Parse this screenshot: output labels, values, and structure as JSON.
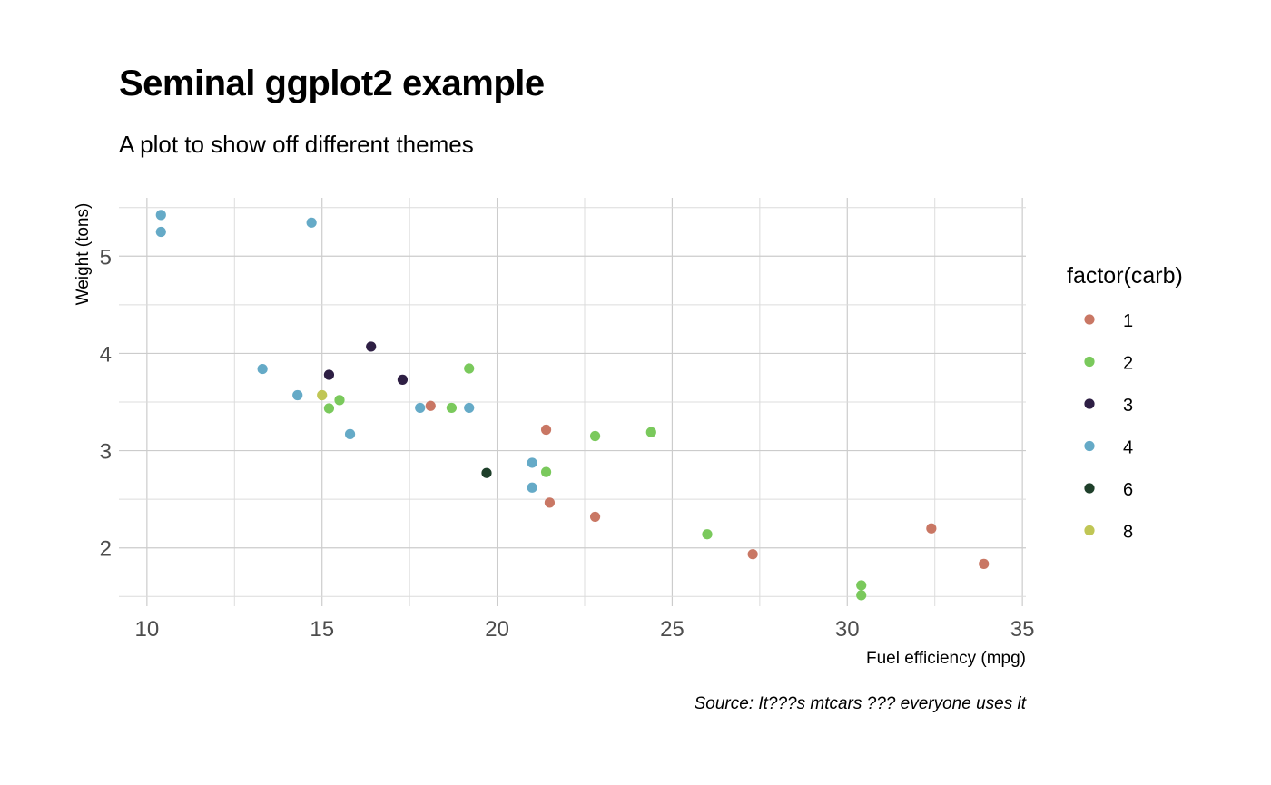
{
  "chart_data": {
    "type": "scatter",
    "title": "Seminal ggplot2 example",
    "subtitle": "A plot to show off different themes",
    "xlabel": "Fuel efficiency (mpg)",
    "ylabel": "Weight (tons)",
    "caption": "Source: It???s mtcars ??? everyone uses it",
    "xlim": [
      9.2,
      35.1
    ],
    "ylim": [
      1.4,
      5.6
    ],
    "x_ticks": [
      10,
      15,
      20,
      25,
      30,
      35
    ],
    "y_ticks": [
      2,
      3,
      4,
      5
    ],
    "grid": true,
    "legend": {
      "title": "factor(carb)",
      "placement": "right",
      "entries": [
        {
          "label": "1",
          "color": "#c97764"
        },
        {
          "label": "2",
          "color": "#7ac95c"
        },
        {
          "label": "3",
          "color": "#2e1f44"
        },
        {
          "label": "4",
          "color": "#65aac7"
        },
        {
          "label": "6",
          "color": "#1e3f2a"
        },
        {
          "label": "8",
          "color": "#c0c655"
        }
      ]
    },
    "series": [
      {
        "name": "1",
        "points": [
          [
            18.1,
            3.46
          ],
          [
            21.4,
            3.215
          ],
          [
            21.5,
            2.465
          ],
          [
            22.8,
            2.32
          ],
          [
            27.3,
            1.935
          ],
          [
            32.4,
            2.2
          ],
          [
            33.9,
            1.835
          ]
        ]
      },
      {
        "name": "2",
        "points": [
          [
            19.2,
            3.845
          ],
          [
            18.7,
            3.44
          ],
          [
            15.5,
            3.52
          ],
          [
            15.2,
            3.435
          ],
          [
            21.4,
            2.78
          ],
          [
            22.8,
            3.15
          ],
          [
            24.4,
            3.19
          ],
          [
            26.0,
            2.14
          ],
          [
            30.4,
            1.615
          ],
          [
            30.4,
            1.513
          ]
        ]
      },
      {
        "name": "3",
        "points": [
          [
            16.4,
            4.07
          ],
          [
            17.3,
            3.73
          ],
          [
            15.2,
            3.78
          ]
        ]
      },
      {
        "name": "4",
        "points": [
          [
            10.4,
            5.424
          ],
          [
            10.4,
            5.25
          ],
          [
            14.7,
            5.345
          ],
          [
            13.3,
            3.84
          ],
          [
            14.3,
            3.57
          ],
          [
            15.8,
            3.17
          ],
          [
            17.8,
            3.44
          ],
          [
            19.2,
            3.44
          ],
          [
            21.0,
            2.875
          ],
          [
            21.0,
            2.62
          ]
        ]
      },
      {
        "name": "6",
        "points": [
          [
            19.7,
            2.77
          ]
        ]
      },
      {
        "name": "8",
        "points": [
          [
            15.0,
            3.57
          ]
        ]
      }
    ]
  }
}
